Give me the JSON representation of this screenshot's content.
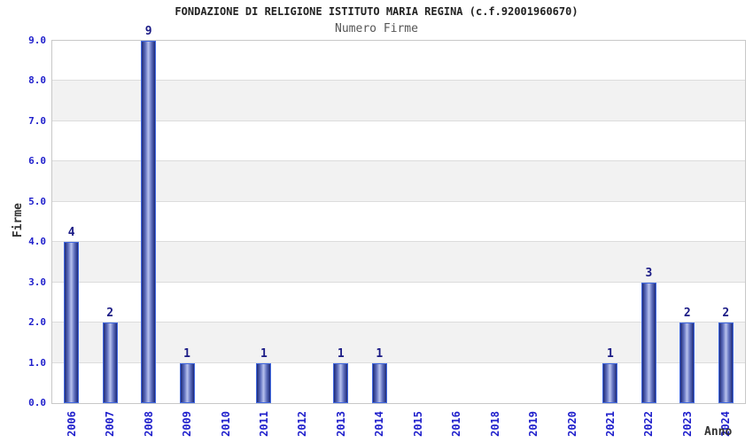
{
  "chart_data": {
    "type": "bar",
    "title": "FONDAZIONE DI RELIGIONE ISTITUTO MARIA REGINA (c.f.92001960670)",
    "subtitle": "Numero Firme",
    "xlabel": "Anno",
    "ylabel": "Firme",
    "categories": [
      "2006",
      "2007",
      "2008",
      "2009",
      "2010",
      "2011",
      "2012",
      "2013",
      "2014",
      "2015",
      "2016",
      "2018",
      "2019",
      "2020",
      "2021",
      "2022",
      "2023",
      "2024"
    ],
    "values": [
      4,
      2,
      9,
      1,
      0,
      1,
      0,
      1,
      1,
      0,
      0,
      0,
      0,
      0,
      1,
      3,
      2,
      2
    ],
    "ylim": [
      0,
      9
    ],
    "yticks": [
      "0.0",
      "1.0",
      "2.0",
      "3.0",
      "4.0",
      "5.0",
      "6.0",
      "7.0",
      "8.0",
      "9.0"
    ],
    "grid": "horizontal gridlines at each integer with alternating light-gray bands",
    "legend_position": "none"
  },
  "colors": {
    "tick_label_blue": "#2020cc",
    "value_label_navy": "#1a1a85",
    "bar_dark": "#1e2a78",
    "bar_mid": "#6272c0",
    "bar_light": "#b9c2ee",
    "bar_border": "#4169e1",
    "band_gray": "#f2f2f2",
    "grid_line": "#dcdcdc",
    "plot_border": "#c8c8c8",
    "title_color": "#222222",
    "subtitle_color": "#555555",
    "axis_title_color": "#333333",
    "background": "#ffffff"
  }
}
